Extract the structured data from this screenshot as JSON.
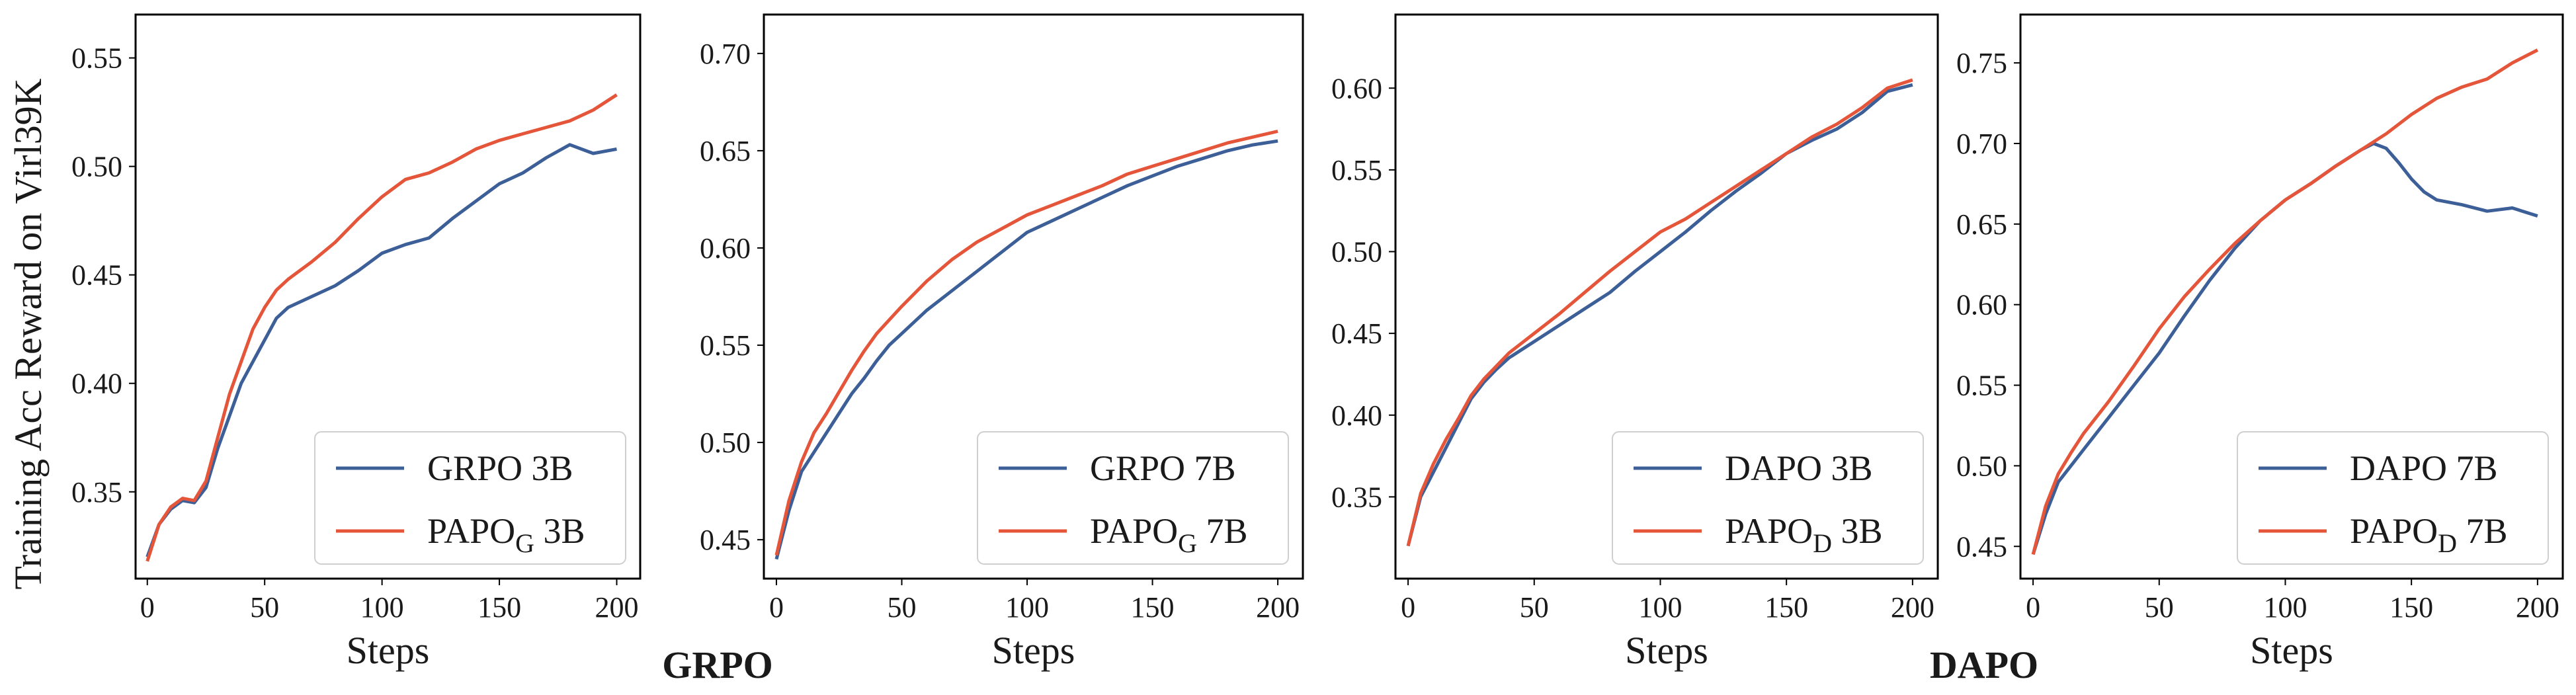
{
  "figure": {
    "ylabel": "Training Acc Reward on Virl39K",
    "group_labels": [
      "GRPO",
      "DAPO"
    ]
  },
  "colors": {
    "baseline": "#3d5f98",
    "papo": "#e4553a",
    "axis": "#000000"
  },
  "chart_data": [
    {
      "type": "line",
      "xlabel": "Steps",
      "xlim": [
        -5,
        210
      ],
      "ylim": [
        0.31,
        0.57
      ],
      "xticks": [
        0,
        50,
        100,
        150,
        200
      ],
      "yticks": [
        0.35,
        0.4,
        0.45,
        0.5,
        0.55
      ],
      "legend_position": "lower-right",
      "series": [
        {
          "name": "GRPO 3B",
          "legend_main": "GRPO 3B",
          "legend_sub": "",
          "legend_tail": "",
          "color": "#3d5f98",
          "x": [
            0,
            5,
            10,
            15,
            20,
            25,
            30,
            35,
            40,
            45,
            50,
            55,
            60,
            70,
            80,
            90,
            100,
            110,
            120,
            130,
            140,
            150,
            160,
            170,
            180,
            190,
            200
          ],
          "y": [
            0.32,
            0.335,
            0.342,
            0.346,
            0.345,
            0.352,
            0.37,
            0.385,
            0.4,
            0.41,
            0.42,
            0.43,
            0.435,
            0.44,
            0.445,
            0.452,
            0.46,
            0.464,
            0.467,
            0.476,
            0.484,
            0.492,
            0.497,
            0.504,
            0.51,
            0.506,
            0.508
          ]
        },
        {
          "name": "PAPO_G 3B",
          "legend_main": "PAPO",
          "legend_sub": "G",
          "legend_tail": " 3B",
          "color": "#e4553a",
          "x": [
            0,
            5,
            10,
            15,
            20,
            25,
            30,
            35,
            40,
            45,
            50,
            55,
            60,
            70,
            80,
            90,
            100,
            110,
            120,
            130,
            140,
            150,
            160,
            170,
            180,
            190,
            200
          ],
          "y": [
            0.318,
            0.335,
            0.343,
            0.347,
            0.346,
            0.355,
            0.375,
            0.395,
            0.41,
            0.425,
            0.435,
            0.443,
            0.448,
            0.456,
            0.465,
            0.476,
            0.486,
            0.494,
            0.497,
            0.502,
            0.508,
            0.512,
            0.515,
            0.518,
            0.521,
            0.526,
            0.533
          ]
        }
      ]
    },
    {
      "type": "line",
      "xlabel": "Steps",
      "xlim": [
        -5,
        210
      ],
      "ylim": [
        0.43,
        0.72
      ],
      "xticks": [
        0,
        50,
        100,
        150,
        200
      ],
      "yticks": [
        0.45,
        0.5,
        0.55,
        0.6,
        0.65,
        0.7
      ],
      "legend_position": "lower-right",
      "series": [
        {
          "name": "GRPO 7B",
          "legend_main": "GRPO 7B",
          "legend_sub": "",
          "legend_tail": "",
          "color": "#3d5f98",
          "x": [
            0,
            5,
            10,
            15,
            20,
            25,
            30,
            35,
            40,
            45,
            50,
            60,
            70,
            80,
            90,
            100,
            110,
            120,
            130,
            140,
            150,
            160,
            170,
            180,
            190,
            200
          ],
          "y": [
            0.44,
            0.465,
            0.485,
            0.495,
            0.505,
            0.515,
            0.525,
            0.533,
            0.542,
            0.55,
            0.556,
            0.568,
            0.578,
            0.588,
            0.598,
            0.608,
            0.614,
            0.62,
            0.626,
            0.632,
            0.637,
            0.642,
            0.646,
            0.65,
            0.653,
            0.655
          ]
        },
        {
          "name": "PAPO_G 7B",
          "legend_main": "PAPO",
          "legend_sub": "G",
          "legend_tail": " 7B",
          "color": "#e4553a",
          "x": [
            0,
            5,
            10,
            15,
            20,
            25,
            30,
            35,
            40,
            45,
            50,
            60,
            70,
            80,
            90,
            100,
            110,
            120,
            130,
            140,
            150,
            160,
            170,
            180,
            190,
            200
          ],
          "y": [
            0.442,
            0.47,
            0.49,
            0.505,
            0.515,
            0.526,
            0.537,
            0.547,
            0.556,
            0.563,
            0.57,
            0.583,
            0.594,
            0.603,
            0.61,
            0.617,
            0.622,
            0.627,
            0.632,
            0.638,
            0.642,
            0.646,
            0.65,
            0.654,
            0.657,
            0.66
          ]
        }
      ]
    },
    {
      "type": "line",
      "xlabel": "Steps",
      "xlim": [
        -5,
        210
      ],
      "ylim": [
        0.3,
        0.645
      ],
      "xticks": [
        0,
        50,
        100,
        150,
        200
      ],
      "yticks": [
        0.35,
        0.4,
        0.45,
        0.5,
        0.55,
        0.6
      ],
      "legend_position": "lower-right",
      "series": [
        {
          "name": "DAPO 3B",
          "legend_main": "DAPO 3B",
          "legend_sub": "",
          "legend_tail": "",
          "color": "#3d5f98",
          "x": [
            0,
            5,
            10,
            15,
            20,
            25,
            30,
            35,
            40,
            50,
            60,
            70,
            80,
            90,
            100,
            110,
            120,
            130,
            140,
            150,
            160,
            170,
            180,
            190,
            200
          ],
          "y": [
            0.32,
            0.35,
            0.365,
            0.38,
            0.395,
            0.41,
            0.42,
            0.428,
            0.435,
            0.445,
            0.455,
            0.465,
            0.475,
            0.488,
            0.5,
            0.512,
            0.525,
            0.537,
            0.548,
            0.56,
            0.568,
            0.575,
            0.585,
            0.598,
            0.602
          ]
        },
        {
          "name": "PAPO_D 3B",
          "legend_main": "PAPO",
          "legend_sub": "D",
          "legend_tail": " 3B",
          "color": "#e4553a",
          "x": [
            0,
            5,
            10,
            15,
            20,
            25,
            30,
            35,
            40,
            50,
            60,
            70,
            80,
            90,
            100,
            110,
            120,
            130,
            140,
            150,
            160,
            170,
            180,
            190,
            200
          ],
          "y": [
            0.32,
            0.352,
            0.37,
            0.385,
            0.398,
            0.412,
            0.422,
            0.43,
            0.438,
            0.45,
            0.462,
            0.475,
            0.488,
            0.5,
            0.512,
            0.52,
            0.53,
            0.54,
            0.55,
            0.56,
            0.57,
            0.578,
            0.588,
            0.6,
            0.605
          ]
        }
      ]
    },
    {
      "type": "line",
      "xlabel": "Steps",
      "xlim": [
        -5,
        210
      ],
      "ylim": [
        0.43,
        0.78
      ],
      "xticks": [
        0,
        50,
        100,
        150,
        200
      ],
      "yticks": [
        0.45,
        0.5,
        0.55,
        0.6,
        0.65,
        0.7,
        0.75
      ],
      "legend_position": "lower-right",
      "series": [
        {
          "name": "DAPO 7B",
          "legend_main": "DAPO 7B",
          "legend_sub": "",
          "legend_tail": "",
          "color": "#3d5f98",
          "x": [
            0,
            5,
            10,
            15,
            20,
            30,
            40,
            50,
            60,
            70,
            80,
            90,
            100,
            110,
            120,
            130,
            135,
            140,
            145,
            150,
            155,
            160,
            170,
            180,
            190,
            200
          ],
          "y": [
            0.445,
            0.47,
            0.49,
            0.5,
            0.51,
            0.53,
            0.55,
            0.57,
            0.593,
            0.615,
            0.635,
            0.652,
            0.665,
            0.675,
            0.686,
            0.696,
            0.7,
            0.697,
            0.688,
            0.678,
            0.67,
            0.665,
            0.662,
            0.658,
            0.66,
            0.655
          ]
        },
        {
          "name": "PAPO_D 7B",
          "legend_main": "PAPO",
          "legend_sub": "D",
          "legend_tail": " 7B",
          "color": "#e4553a",
          "x": [
            0,
            5,
            10,
            15,
            20,
            30,
            40,
            50,
            60,
            70,
            80,
            90,
            100,
            110,
            120,
            130,
            140,
            150,
            160,
            170,
            180,
            190,
            200
          ],
          "y": [
            0.445,
            0.475,
            0.495,
            0.508,
            0.52,
            0.54,
            0.562,
            0.585,
            0.605,
            0.622,
            0.638,
            0.652,
            0.665,
            0.675,
            0.686,
            0.696,
            0.706,
            0.718,
            0.728,
            0.735,
            0.74,
            0.75,
            0.758
          ]
        }
      ]
    }
  ]
}
